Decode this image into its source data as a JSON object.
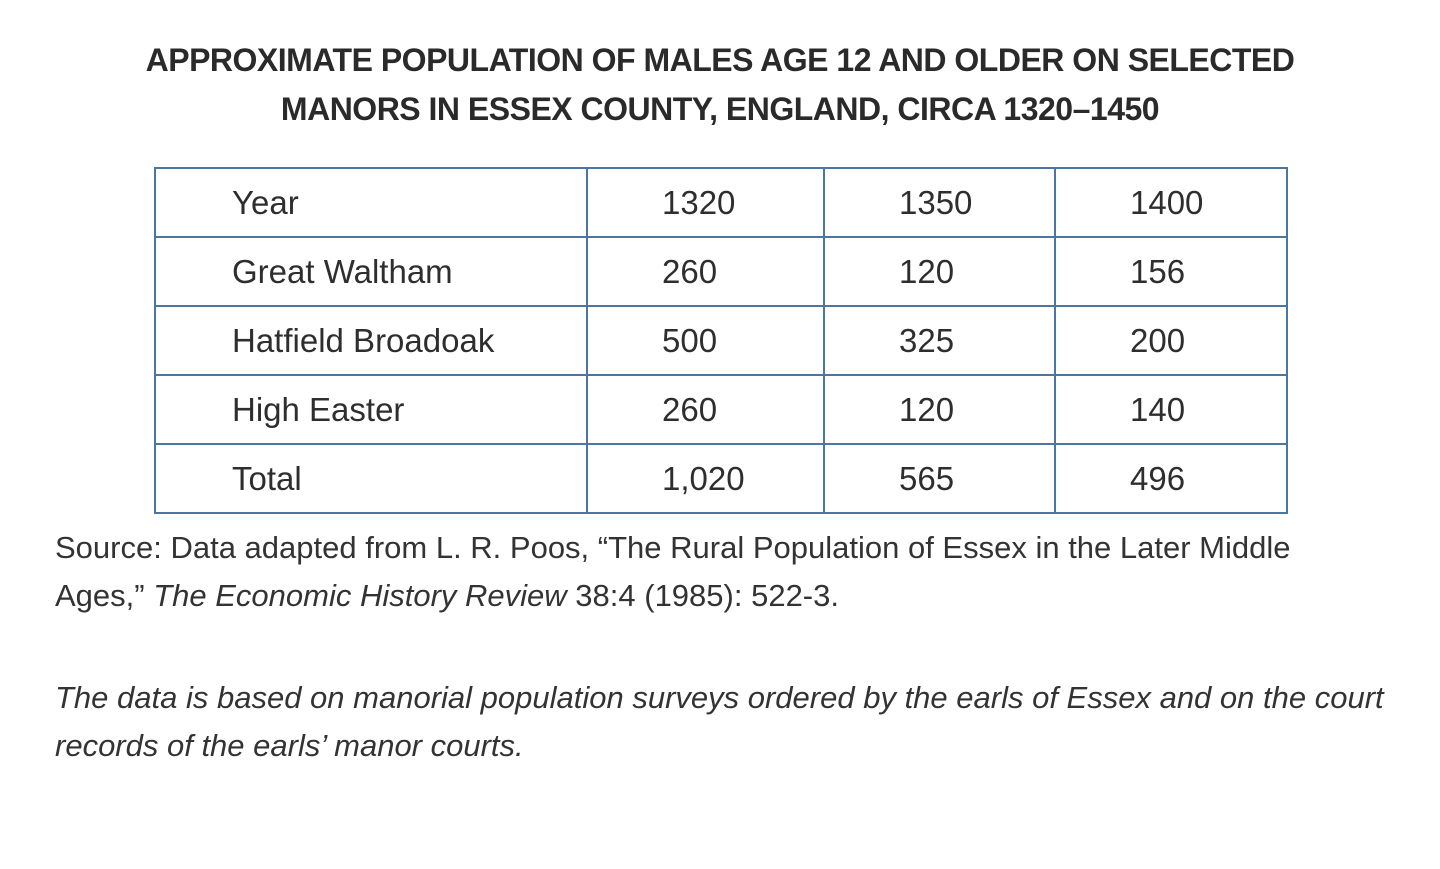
{
  "title": {
    "line1": "APPROXIMATE POPULATION OF MALES AGE 12 AND OLDER ON SELECTED",
    "line2": "MANORS IN ESSEX COUNTY, ENGLAND, CIRCA 1320–1450"
  },
  "table": {
    "header": [
      "Year",
      "1320",
      "1350",
      "1400"
    ],
    "rows": [
      [
        "Great Waltham",
        "260",
        "120",
        "156"
      ],
      [
        "Hatfield Broadoak",
        "500",
        "325",
        "200"
      ],
      [
        "High Easter",
        "260",
        "120",
        "140"
      ],
      [
        "Total",
        "1,020",
        "565",
        "496"
      ]
    ],
    "border_color": "#4a76a0"
  },
  "source": {
    "prefix": "Source: Data adapted from L. R. Poos, “The Rural Population of Essex in the Later Middle Ages,” ",
    "journal": "The Economic History Review",
    "suffix": " 38:4 (1985): 522-3."
  },
  "note": "The data is based on manorial population surveys ordered by the earls of Essex and on the court records of the earls’ manor courts."
}
